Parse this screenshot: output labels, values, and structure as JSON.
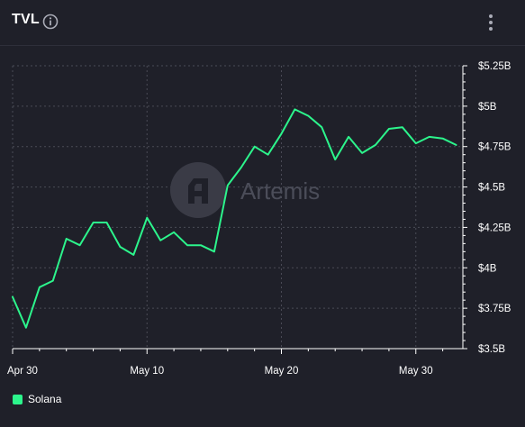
{
  "header": {
    "title": "TVL",
    "info_icon": "info-icon",
    "menu_icon": "more-vertical-icon"
  },
  "watermark": {
    "text": "Artemis",
    "icon": "artemis-logo-icon"
  },
  "colors": {
    "background": "#1f2029",
    "grid": "#4a4b56",
    "line": "#2cf58c",
    "axis": "#ffffff",
    "watermark": "#4b4d59"
  },
  "chart_data": {
    "type": "line",
    "title": "TVL",
    "xlabel": "",
    "ylabel": "",
    "x_tick_labels": [
      "Apr 30",
      "May 10",
      "May 20",
      "May 30"
    ],
    "x_tick_days": [
      0,
      10,
      20,
      30
    ],
    "y_tick_labels": [
      "$3.5B",
      "$3.75B",
      "$4B",
      "$4.25B",
      "$4.5B",
      "$4.75B",
      "$5B",
      "$5.25B"
    ],
    "y_tick_values": [
      3.5,
      3.75,
      4.0,
      4.25,
      4.5,
      4.75,
      5.0,
      5.25
    ],
    "ylim": [
      3.5,
      5.25
    ],
    "xlim": [
      0,
      33.5
    ],
    "grid": true,
    "legend": "bottom-left",
    "series": [
      {
        "name": "Solana",
        "color": "#2cf58c",
        "x": [
          0,
          1,
          2,
          3,
          4,
          5,
          6,
          7,
          8,
          9,
          10,
          11,
          12,
          13,
          14,
          15,
          16,
          17,
          18,
          19,
          20,
          21,
          22,
          23,
          24,
          25,
          26,
          27,
          28,
          29,
          30,
          31,
          32,
          33
        ],
        "values": [
          3.82,
          3.63,
          3.88,
          3.92,
          4.18,
          4.14,
          4.28,
          4.28,
          4.13,
          4.08,
          4.31,
          4.17,
          4.22,
          4.14,
          4.14,
          4.1,
          4.51,
          4.62,
          4.75,
          4.7,
          4.83,
          4.98,
          4.94,
          4.87,
          4.67,
          4.81,
          4.71,
          4.76,
          4.86,
          4.87,
          4.77,
          4.81,
          4.8,
          4.76
        ]
      }
    ]
  }
}
